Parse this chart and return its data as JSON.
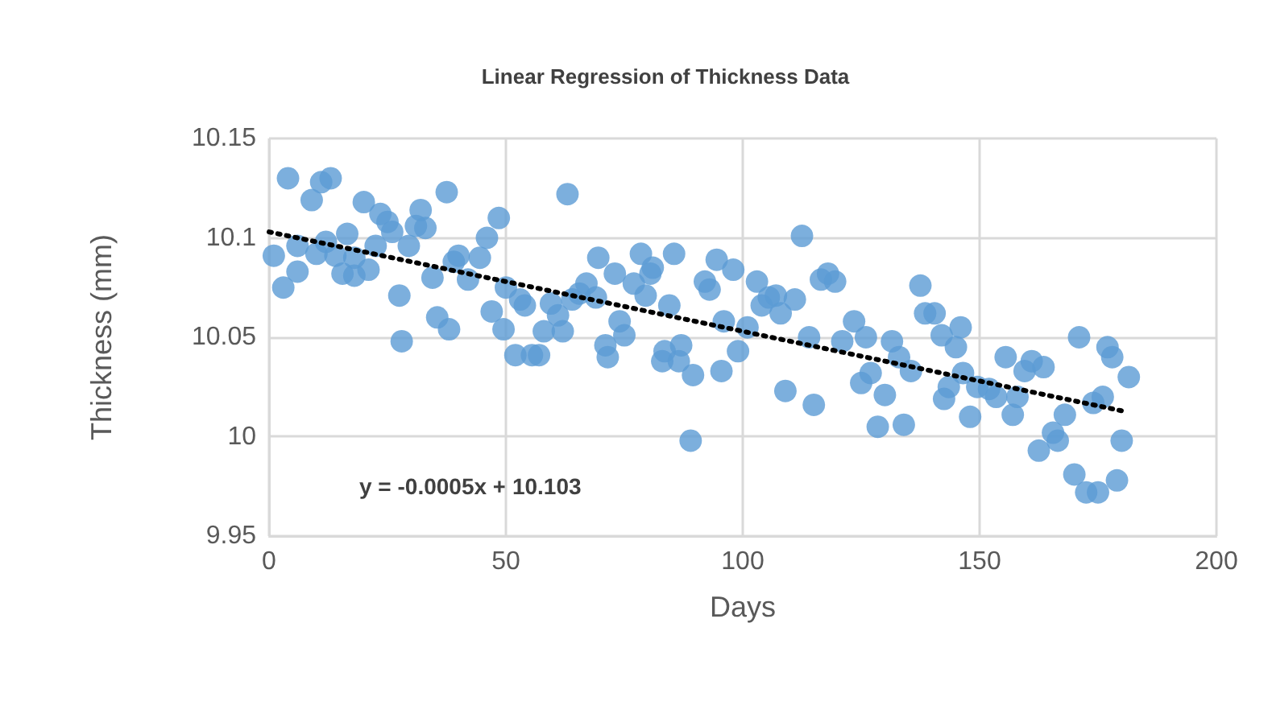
{
  "chart_data": {
    "type": "scatter",
    "title": "Linear Regression of Thickness Data",
    "xlabel": "Days",
    "ylabel": "Thickness (mm)",
    "annotations": [
      "y = -0.0005x + 10.103"
    ],
    "xlim": [
      0,
      200
    ],
    "xticks": [
      0,
      50,
      100,
      150,
      200
    ],
    "ylim": [
      9.95,
      10.15
    ],
    "yticks": [
      9.95,
      10,
      10.05,
      10.1,
      10.15
    ],
    "grid": true,
    "marker": "circle",
    "series": [
      {
        "color": "#5b9bd5",
        "x": [
          1,
          3,
          4,
          6,
          6,
          9,
          10,
          11,
          13,
          12,
          14,
          15.5,
          16.5,
          18,
          18,
          20,
          21,
          22.5,
          23.5,
          25,
          26,
          27.5,
          28,
          29.5,
          31,
          32,
          33,
          34.5,
          35.5,
          37.5,
          38,
          39,
          40,
          42,
          44.5,
          46,
          47,
          48.5,
          49.5,
          50,
          52,
          53,
          54,
          55.5,
          57,
          58,
          59.5,
          61,
          62,
          63,
          64,
          65.5,
          67,
          69,
          69.5,
          71,
          71.5,
          73,
          74,
          75,
          77,
          78.5,
          79.5,
          80.5,
          81,
          83,
          83.5,
          84.5,
          85.5,
          86.5,
          87,
          89,
          89.5,
          92,
          93,
          94.5,
          95.5,
          96,
          98,
          99,
          101,
          103,
          104,
          105.5,
          107,
          108,
          109,
          111,
          112.5,
          114,
          115,
          116.5,
          118,
          119.5,
          121,
          123.5,
          125,
          126,
          127,
          128.5,
          130,
          131.5,
          133,
          134,
          135.5,
          137.5,
          138.5,
          140.5,
          142,
          142.5,
          143.5,
          145,
          146,
          146.5,
          148,
          149.5,
          152,
          153.5,
          155.5,
          157,
          158,
          159.5,
          161,
          162.5,
          163.5,
          165.5,
          166.5,
          168,
          170,
          171,
          172.5,
          174,
          175,
          176,
          177,
          178,
          179,
          180,
          181.5
        ],
        "values": [
          10.091,
          10.075,
          10.13,
          10.083,
          10.096,
          10.119,
          10.092,
          10.128,
          10.13,
          10.098,
          10.091,
          10.082,
          10.102,
          10.09,
          10.081,
          10.118,
          10.084,
          10.096,
          10.112,
          10.108,
          10.103,
          10.071,
          10.048,
          10.096,
          10.106,
          10.114,
          10.105,
          10.08,
          10.06,
          10.123,
          10.054,
          10.088,
          10.091,
          10.079,
          10.09,
          10.1,
          10.063,
          10.11,
          10.054,
          10.075,
          10.041,
          10.069,
          10.066,
          10.041,
          10.041,
          10.053,
          10.067,
          10.061,
          10.053,
          10.122,
          10.069,
          10.072,
          10.077,
          10.07,
          10.09,
          10.046,
          10.04,
          10.082,
          10.058,
          10.051,
          10.077,
          10.092,
          10.071,
          10.082,
          10.085,
          10.038,
          10.043,
          10.066,
          10.092,
          10.038,
          10.046,
          9.998,
          10.031,
          10.078,
          10.074,
          10.089,
          10.033,
          10.058,
          10.084,
          10.043,
          10.055,
          10.078,
          10.066,
          10.07,
          10.071,
          10.062,
          10.023,
          10.069,
          10.101,
          10.05,
          10.016,
          10.079,
          10.082,
          10.078,
          10.048,
          10.058,
          10.027,
          10.05,
          10.032,
          10.005,
          10.021,
          10.048,
          10.04,
          10.006,
          10.033,
          10.076,
          10.062,
          10.062,
          10.051,
          10.019,
          10.025,
          10.045,
          10.055,
          10.032,
          10.01,
          10.025,
          10.024,
          10.02,
          10.04,
          10.011,
          10.02,
          10.033,
          10.038,
          9.993,
          10.035,
          10.002,
          9.998,
          10.011,
          9.981,
          10.05,
          9.972,
          10.017,
          9.972,
          10.02,
          10.045,
          10.04,
          9.978,
          9.998,
          10.03
        ]
      },
      {
        "type": "line",
        "color": "#000000",
        "line_style": "dotted",
        "marker": "none",
        "x": [
          0,
          180
        ],
        "values": [
          10.103,
          10.013
        ]
      }
    ]
  }
}
